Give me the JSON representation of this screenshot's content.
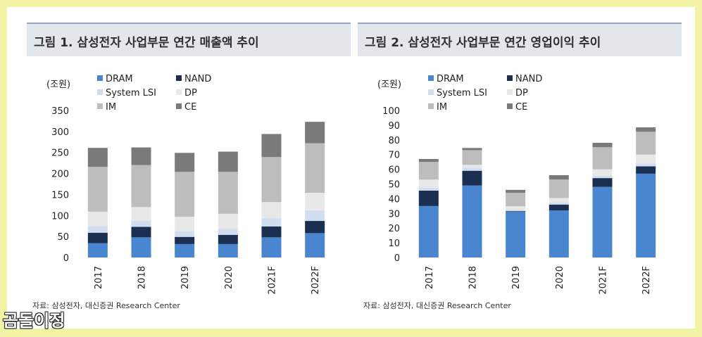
{
  "colors": {
    "DRAM": "#4a86d0",
    "NAND": "#1b2f52",
    "System LSI": "#d0def0",
    "DP": "#e8e8e8",
    "IM": "#bdbdbd",
    "CE": "#7a7a7a"
  },
  "watermark": "곰돌이정",
  "chart_data": [
    {
      "type": "bar",
      "stacked": true,
      "title": "그림 1. 삼성전자 사업부문 연간 매출액 추이",
      "ylabel": "(조원)",
      "ylim": [
        0,
        350
      ],
      "yticks": [
        0,
        50,
        100,
        150,
        200,
        250,
        300,
        350
      ],
      "categories": [
        "2017",
        "2018",
        "2019",
        "2020",
        "2021F",
        "2022F"
      ],
      "series": [
        {
          "name": "DRAM",
          "values": [
            34,
            48,
            32,
            32,
            48,
            58
          ]
        },
        {
          "name": "NAND",
          "values": [
            25,
            25,
            17,
            22,
            26,
            29
          ]
        },
        {
          "name": "System LSI",
          "values": [
            16,
            14,
            14,
            14,
            20,
            25
          ]
        },
        {
          "name": "DP",
          "values": [
            34,
            33,
            34,
            36,
            38,
            42
          ]
        },
        {
          "name": "IM",
          "values": [
            107,
            100,
            107,
            100,
            107,
            118
          ]
        },
        {
          "name": "CE",
          "values": [
            45,
            42,
            45,
            48,
            55,
            51
          ]
        }
      ],
      "source": "자료: 삼성전자, 대신증권 Research Center"
    },
    {
      "type": "bar",
      "stacked": true,
      "title": "그림 2. 삼성전자 사업부문 연간 영업이익 추이",
      "ylabel": "(조원)",
      "ylim": [
        0,
        100
      ],
      "yticks": [
        0,
        10,
        20,
        30,
        40,
        50,
        60,
        70,
        80,
        90,
        100
      ],
      "categories": [
        "2017",
        "2018",
        "2019",
        "2020",
        "2021F",
        "2022F"
      ],
      "series": [
        {
          "name": "DRAM",
          "values": [
            35,
            49,
            31,
            32,
            48,
            57
          ]
        },
        {
          "name": "NAND",
          "values": [
            10.5,
            10,
            0.5,
            4,
            6,
            5
          ]
        },
        {
          "name": "System LSI",
          "values": [
            2,
            2,
            0.8,
            1.5,
            1.5,
            2
          ]
        },
        {
          "name": "DP",
          "values": [
            5.5,
            2,
            2.5,
            3,
            4.5,
            6
          ]
        },
        {
          "name": "IM",
          "values": [
            12,
            10,
            9.2,
            12.5,
            15,
            15.5
          ]
        },
        {
          "name": "CE",
          "values": [
            2,
            1.5,
            2,
            3,
            3,
            3
          ]
        }
      ],
      "source": "자료: 삼성전자, 대신증권 Research Center"
    }
  ]
}
